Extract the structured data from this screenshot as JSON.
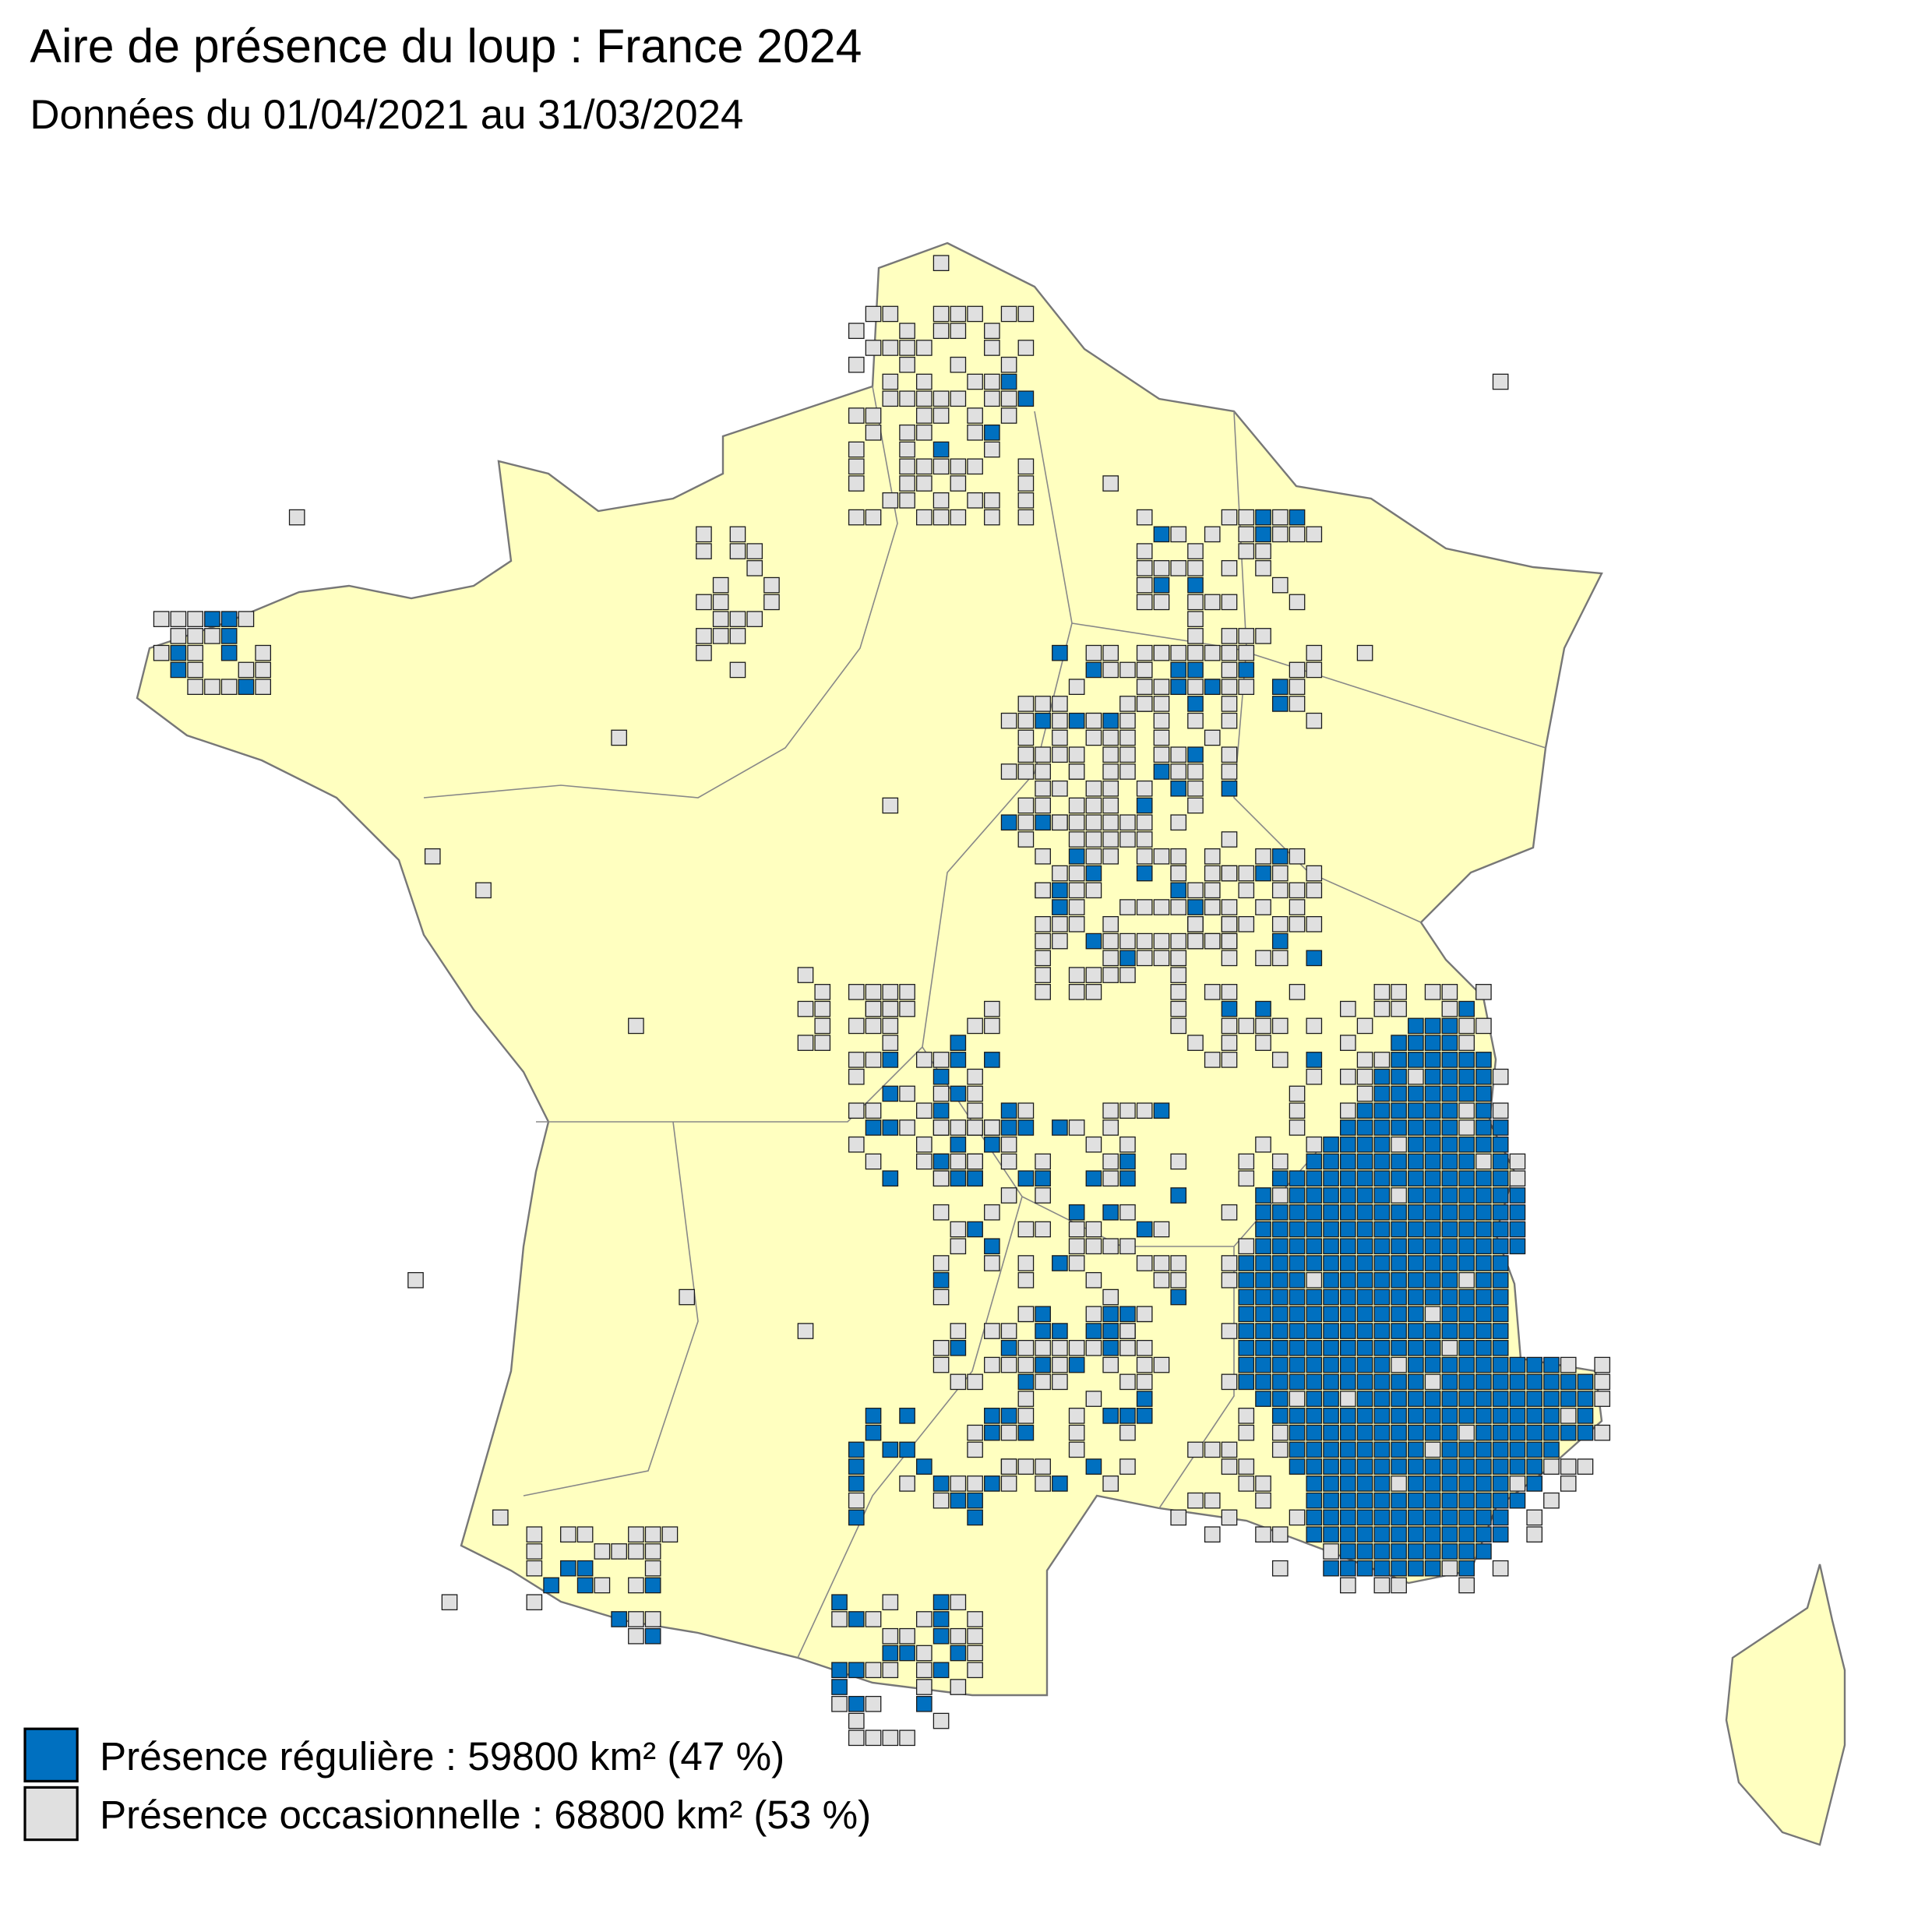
{
  "header": {
    "title": "Aire de présence du loup : France 2024",
    "subtitle": "Données du 01/04/2021 au 31/03/2024"
  },
  "legend": [
    {
      "label": "Présence régulière : 59800 km² (47 %)",
      "color": "#0070c0"
    },
    {
      "label": "Présence occasionnelle : 68800 km² (53 %)",
      "color": "#e0e0e0"
    }
  ]
}
